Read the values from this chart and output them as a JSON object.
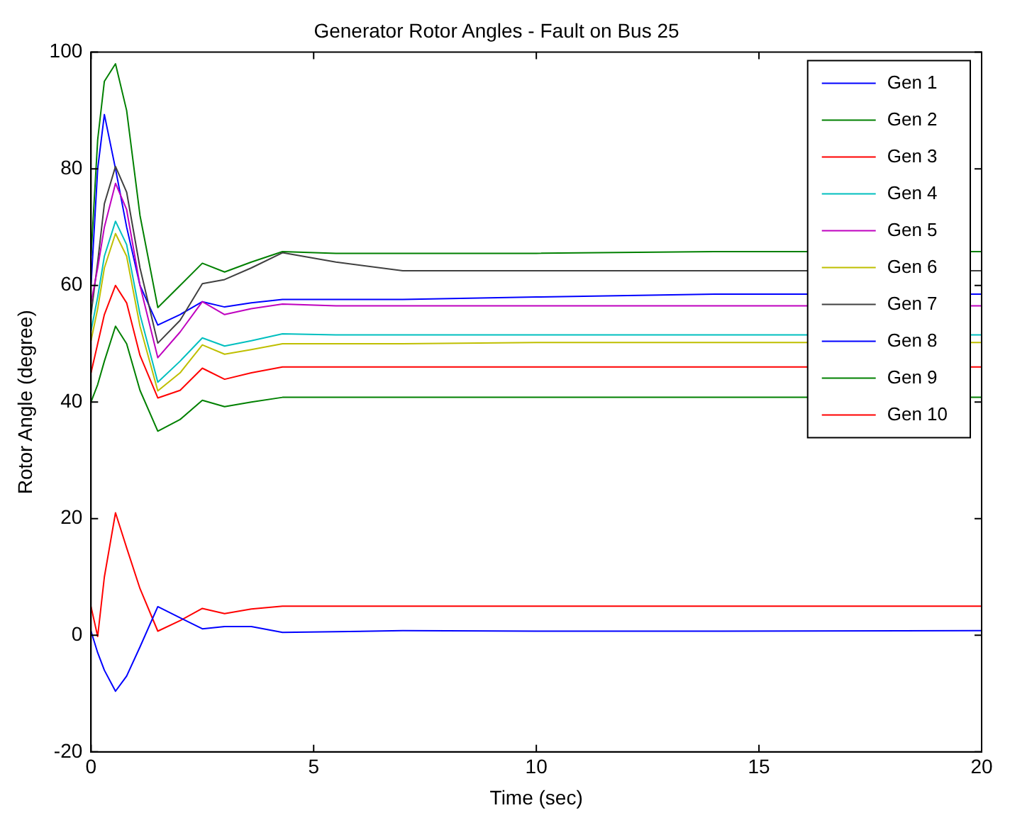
{
  "chart_data": {
    "type": "line",
    "title": "Generator Rotor Angles - Fault on Bus 25",
    "xlabel": "Time (sec)",
    "ylabel": "Rotor Angle (degree)",
    "x": [
      0,
      0.15,
      0.3,
      0.55,
      0.8,
      1.1,
      1.5,
      2.0,
      2.5,
      3.0,
      3.6,
      4.3,
      5.5,
      7,
      10,
      14,
      20
    ],
    "series": [
      {
        "name": "Gen 1",
        "color": "#0000ff",
        "values": [
          0.7,
          -3,
          -6,
          -9.6,
          -7,
          -2,
          4.9,
          3,
          1.1,
          1.5,
          1.5,
          0.5,
          0.6,
          0.8,
          0.7,
          0.7,
          0.8
        ]
      },
      {
        "name": "Gen 2",
        "color": "#008000",
        "values": [
          40,
          43,
          47,
          53,
          50,
          42,
          35,
          37,
          40.3,
          39.2,
          40,
          40.8,
          40.8,
          40.8,
          40.8,
          40.8,
          40.8
        ]
      },
      {
        "name": "Gen 3",
        "color": "#ff0000",
        "values": [
          45,
          50,
          55,
          60,
          57,
          48,
          40.7,
          42,
          45.8,
          43.9,
          45,
          46,
          46,
          46,
          46,
          46,
          46
        ]
      },
      {
        "name": "Gen 4",
        "color": "#00bfbf",
        "values": [
          52.2,
          58,
          65,
          71,
          67,
          55,
          43.4,
          47,
          51,
          49.6,
          50.5,
          51.7,
          51.5,
          51.5,
          51.5,
          51.5,
          51.5
        ]
      },
      {
        "name": "Gen 5",
        "color": "#bf00bf",
        "values": [
          57,
          63,
          70,
          77.5,
          73,
          60,
          47.6,
          52,
          57.2,
          55,
          56,
          56.8,
          56.5,
          56.5,
          56.5,
          56.5,
          56.5
        ]
      },
      {
        "name": "Gen 6",
        "color": "#bfbf00",
        "values": [
          50.5,
          56,
          63,
          68.9,
          65,
          53,
          41.9,
          45,
          49.8,
          48.2,
          49,
          50,
          50,
          50,
          50.2,
          50.2,
          50.2
        ]
      },
      {
        "name": "Gen 7",
        "color": "#404040",
        "values": [
          55,
          64,
          74,
          80.4,
          76,
          63,
          50.1,
          54,
          60.3,
          61,
          63,
          65.6,
          64,
          62.5,
          62.5,
          62.5,
          62.5
        ]
      },
      {
        "name": "Gen 8",
        "color": "#0000ff",
        "values": [
          60,
          80,
          89.3,
          80,
          70,
          60,
          53.2,
          55,
          57.2,
          56.3,
          57,
          57.6,
          57.6,
          57.6,
          58,
          58.5,
          58.5
        ]
      },
      {
        "name": "Gen 9",
        "color": "#008000",
        "values": [
          65,
          85,
          95,
          98,
          90,
          72,
          56.2,
          60,
          63.8,
          62.3,
          64,
          65.8,
          65.5,
          65.5,
          65.5,
          65.8,
          65.8
        ]
      },
      {
        "name": "Gen 10",
        "color": "#ff0000",
        "values": [
          4.9,
          -0.2,
          10,
          21,
          15,
          8,
          0.7,
          2.5,
          4.6,
          3.7,
          4.5,
          5,
          5,
          5,
          5,
          5,
          5
        ]
      }
    ],
    "xlim": [
      0,
      20
    ],
    "xticks": [
      0,
      5,
      10,
      15,
      20
    ],
    "ylim": [
      -20,
      100
    ],
    "yticks": [
      -20,
      0,
      20,
      40,
      60,
      80,
      100
    ],
    "grid": false,
    "legend": "top right",
    "marker": "none",
    "line_style": "solid"
  }
}
